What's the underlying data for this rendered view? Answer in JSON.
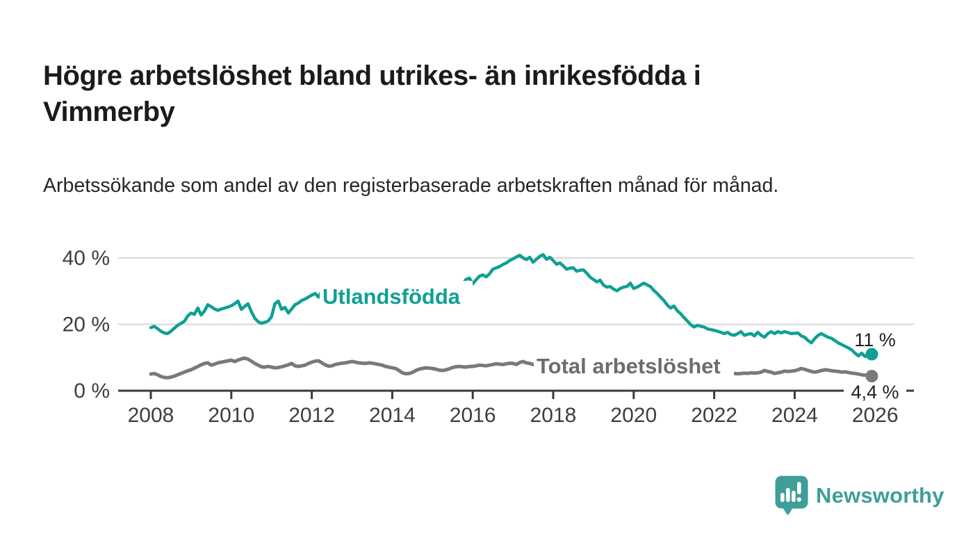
{
  "header": {
    "title": "Högre arbetslöshet bland utrikes- än inrikesfödda i Vimmerby",
    "subtitle": "Arbetssökande som andel av den registerbaserade arbetskraften månad för månad."
  },
  "branding": {
    "logo_text": "Newsworthy",
    "logo_icon": "bar-chart-speech-bubble-icon",
    "logo_color": "#3f9e99"
  },
  "colors": {
    "grid": "#d9d9d9",
    "axis": "#3a3a3a",
    "tick_text": "#3d3d3d",
    "end_label_text": "#1f1f1f",
    "utlandsfodda_teal": "#0fa093",
    "total_gray": "#7a777d"
  },
  "chart_data": {
    "type": "line",
    "title": "Högre arbetslöshet bland utrikes- än inrikesfödda i Vimmerby",
    "subtitle": "Arbetssökande som andel av den registerbaserade arbetskraften månad för månad.",
    "frequency": "monthly",
    "x_range": [
      "2008-01",
      "2025-12"
    ],
    "xlim": [
      2007.2,
      2027.0
    ],
    "ylim": [
      0,
      44
    ],
    "grid": "horizontal",
    "x_ticks": [
      "2008",
      "2010",
      "2012",
      "2014",
      "2016",
      "2018",
      "2020",
      "2022",
      "2024",
      "2026"
    ],
    "y_ticks": [
      "0 %",
      "20 %",
      "40 %"
    ],
    "series": [
      {
        "name": "Utlandsfödda",
        "color": "#0fa093",
        "label_color": "#0fa093",
        "end_label": "11 %",
        "last_value": 11,
        "values": [
          19.0,
          19.4,
          18.7,
          17.9,
          17.4,
          17.2,
          17.9,
          18.8,
          19.7,
          20.3,
          20.9,
          22.5,
          23.4,
          23.0,
          24.9,
          22.8,
          24.0,
          25.9,
          25.3,
          24.6,
          24.2,
          24.6,
          24.9,
          25.2,
          25.6,
          26.2,
          27.0,
          24.5,
          25.4,
          26.2,
          23.8,
          21.8,
          20.8,
          20.3,
          20.6,
          21.0,
          22.3,
          26.2,
          27.0,
          24.5,
          25.1,
          23.4,
          24.6,
          25.9,
          26.4,
          27.2,
          27.6,
          28.2,
          28.8,
          29.3,
          28.2,
          30.1,
          29.6,
          29.2,
          29.6,
          30.0,
          29.6,
          29.9,
          30.2,
          30.0,
          30.2,
          29.9,
          30.3,
          30.6,
          30.3,
          30.0,
          30.4,
          30.7,
          30.4,
          30.8,
          31.0,
          30.7,
          30.9,
          31.1,
          30.8,
          30.6,
          30.9,
          31.2,
          31.0,
          30.8,
          31.1,
          31.3,
          31.0,
          30.8,
          31.0,
          31.2,
          31.5,
          31.2,
          31.0,
          31.3,
          31.5,
          31.2,
          31.4,
          32.2,
          33.5,
          33.9,
          32.2,
          33.4,
          34.5,
          34.9,
          34.3,
          35.2,
          36.6,
          37.0,
          37.4,
          38.0,
          38.5,
          39.2,
          39.7,
          40.3,
          40.8,
          40.0,
          39.5,
          40.2,
          38.7,
          39.6,
          40.5,
          41.0,
          39.6,
          40.2,
          39.2,
          38.1,
          38.5,
          37.6,
          36.6,
          36.9,
          37.0,
          36.0,
          36.3,
          36.4,
          35.4,
          34.2,
          33.5,
          32.8,
          33.3,
          31.8,
          31.2,
          31.4,
          30.6,
          30.1,
          30.8,
          31.2,
          31.4,
          32.4,
          30.8,
          31.2,
          31.8,
          32.4,
          31.9,
          31.4,
          30.2,
          29.3,
          28.2,
          27.2,
          25.8,
          24.9,
          25.5,
          24.1,
          23.2,
          22.0,
          21.0,
          19.9,
          19.2,
          19.7,
          19.4,
          19.2,
          18.6,
          18.4,
          18.2,
          17.9,
          17.6,
          17.2,
          17.6,
          16.9,
          16.7,
          17.2,
          17.8,
          16.7,
          17.0,
          17.2,
          16.5,
          17.6,
          16.7,
          16.1,
          17.2,
          17.8,
          17.2,
          17.8,
          17.4,
          17.8,
          17.5,
          17.2,
          17.3,
          17.4,
          16.5,
          16.1,
          15.1,
          14.4,
          15.7,
          16.7,
          17.2,
          16.6,
          16.1,
          15.8,
          15.1,
          14.4,
          13.9,
          13.4,
          12.9,
          12.3,
          11.3,
          10.5,
          11.3,
          10.3,
          10.8,
          11.0
        ]
      },
      {
        "name": "Total arbetslöshet",
        "color": "#7a777d",
        "label_color": "#6e6b71",
        "end_label": "4,4 %",
        "last_value": 4.4,
        "values": [
          5.0,
          5.2,
          4.8,
          4.3,
          4.0,
          3.9,
          4.1,
          4.4,
          4.8,
          5.2,
          5.6,
          6.0,
          6.3,
          6.8,
          7.3,
          7.8,
          8.2,
          8.4,
          7.7,
          8.0,
          8.4,
          8.6,
          8.8,
          9.0,
          9.2,
          8.8,
          9.2,
          9.6,
          9.8,
          9.5,
          8.9,
          8.2,
          7.7,
          7.2,
          7.1,
          7.3,
          7.1,
          6.9,
          7.0,
          7.2,
          7.5,
          7.8,
          8.2,
          7.5,
          7.3,
          7.5,
          7.7,
          8.2,
          8.6,
          8.9,
          9.0,
          8.4,
          7.8,
          7.4,
          7.5,
          7.9,
          8.1,
          8.3,
          8.4,
          8.6,
          8.8,
          8.6,
          8.4,
          8.3,
          8.2,
          8.4,
          8.3,
          8.1,
          7.9,
          7.7,
          7.3,
          7.1,
          6.9,
          6.7,
          6.1,
          5.4,
          5.1,
          5.2,
          5.5,
          6.1,
          6.5,
          6.7,
          6.9,
          6.8,
          6.7,
          6.5,
          6.2,
          6.1,
          6.3,
          6.6,
          7.0,
          7.2,
          7.3,
          7.2,
          7.1,
          7.3,
          7.3,
          7.5,
          7.7,
          7.6,
          7.5,
          7.7,
          7.9,
          8.1,
          8.0,
          7.9,
          8.1,
          8.3,
          8.2,
          7.9,
          8.5,
          8.8,
          8.4,
          8.2,
          7.9,
          7.7,
          7.5,
          7.4,
          7.2,
          7.3,
          7.2,
          7.0,
          6.9,
          6.8,
          6.6,
          6.5,
          6.6,
          6.5,
          6.4,
          6.5,
          6.6,
          6.7,
          6.8,
          6.7,
          6.6,
          6.5,
          6.6,
          6.7,
          6.8,
          6.7,
          6.8,
          6.9,
          7.0,
          7.2,
          7.4,
          7.6,
          8.2,
          8.9,
          9.4,
          9.6,
          9.5,
          9.3,
          9.0,
          8.8,
          8.5,
          8.4,
          8.3,
          8.1,
          7.9,
          7.6,
          7.2,
          6.9,
          6.6,
          6.3,
          6.1,
          5.9,
          5.8,
          5.7,
          5.6,
          5.5,
          5.4,
          5.2,
          5.0,
          5.1,
          5.2,
          5.1,
          5.2,
          5.3,
          5.2,
          5.4,
          5.3,
          5.4,
          5.6,
          6.1,
          5.8,
          5.6,
          5.2,
          5.4,
          5.6,
          5.9,
          5.8,
          5.9,
          6.0,
          6.3,
          6.7,
          6.4,
          6.1,
          5.8,
          5.6,
          5.8,
          6.1,
          6.3,
          6.2,
          6.0,
          5.9,
          5.8,
          5.6,
          5.7,
          5.5,
          5.3,
          5.2,
          5.0,
          4.8,
          4.7,
          4.5,
          4.4
        ]
      }
    ]
  }
}
